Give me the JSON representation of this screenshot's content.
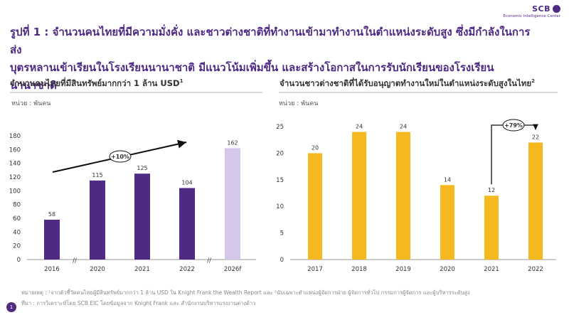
{
  "brand": {
    "name": "SCB",
    "subtitle": "Economic Intelligence Center"
  },
  "headline": {
    "line1": "รูปที่ 1 : จำนวนคนไทยที่มีความมั่งคั่ง และชาวต่างชาติที่ทำงานเข้ามาทำงานในตำแหน่งระดับสูง ซึ่งมีกำลังในการส่ง",
    "line2": "บุตรหลานเข้าเรียนในโรงเรียนนานาชาติ มีแนวโน้มเพิ่มขึ้น และสร้างโอกาสในการรับนักเรียนของโรงเรียนนานาชาติ"
  },
  "colors": {
    "brand_purple": "#4e2a84",
    "light_purple": "#d5c6ea",
    "gold": "#f5b920"
  },
  "chart_data": [
    {
      "type": "bar",
      "title": "จำนวนคนไทยที่มีสินทรัพย์มากกว่า 1 ล้าน USD",
      "title_sup": "1",
      "unit": "หน่วย : พันคน",
      "categories": [
        "2016",
        "2020",
        "2021",
        "2022",
        "2026f"
      ],
      "values": [
        58,
        115,
        125,
        104,
        162
      ],
      "data_labels": [
        "58",
        "115",
        "125",
        "104",
        "162"
      ],
      "bar_colors": [
        "#4e2a84",
        "#4e2a84",
        "#4e2a84",
        "#4e2a84",
        "#d5c6ea"
      ],
      "ylim": [
        0,
        180
      ],
      "yticks": [
        "0",
        "20",
        "40",
        "60",
        "80",
        "100",
        "120",
        "140",
        "160",
        "180"
      ],
      "axis_breaks": [
        "//",
        "//"
      ],
      "annotation": "+10%"
    },
    {
      "type": "bar",
      "title": "จำนวนชาวต่างชาติที่ได้รับอนุญาตทำงานใหม่ในตำแหน่งระดับสูงในไทย",
      "title_sup": "2",
      "unit": "หน่วย : พันคน",
      "categories": [
        "2017",
        "2018",
        "2019",
        "2020",
        "2021",
        "2022"
      ],
      "values": [
        20,
        24,
        24,
        14,
        12,
        22
      ],
      "data_labels": [
        "20",
        "24",
        "24",
        "14",
        "12",
        "22"
      ],
      "bar_colors": [
        "#f5b920",
        "#f5b920",
        "#f5b920",
        "#f5b920",
        "#f5b920",
        "#f5b920"
      ],
      "ylim": [
        0,
        25
      ],
      "yticks": [
        "0",
        "5",
        "10",
        "15",
        "20",
        "25"
      ],
      "annotation": "+79%"
    }
  ],
  "notes": {
    "line1": "หมายเหตุ : ¹จากตัวชี้วัดคนไทยผู้มีสินทรัพย์มากกว่า 1 ล้าน USD ใน Knight Frank the Wealth Report และ ²นับเฉพาะตำแหน่งผู้จัดการฝ่าย ผู้จัดการทั่วไป กรรมการผู้จัดการ และผู้บริหารระดับสูง",
    "line2": "ที่มา : การวิเคราะห์โดย SCB EIC โดยข้อมูลจาก Knight Frank และ สำนักงานบริหารแรงงานต่างด้าว"
  },
  "page_number": "1"
}
